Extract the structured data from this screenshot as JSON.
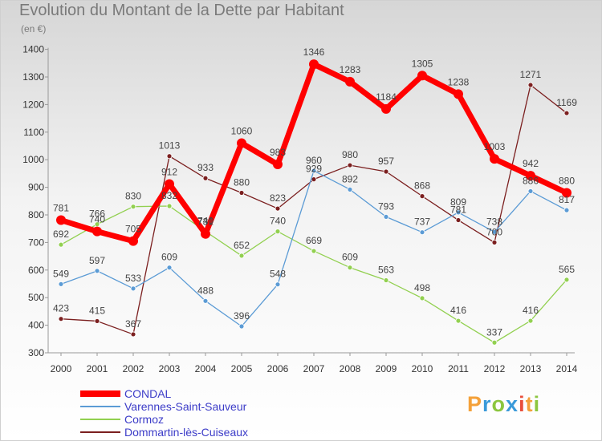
{
  "header": {
    "title": "Evolution du Montant de la Dette par Habitant",
    "unit": "(en €)"
  },
  "logo": {
    "text": "Proxiti",
    "colors": [
      "#f4a13a",
      "#3a9ad9",
      "#8cc63f",
      "#3a9ad9",
      "#e94e3b",
      "#f4a13a",
      "#8cc63f"
    ]
  },
  "chart_data": {
    "type": "line",
    "title": "Evolution du Montant de la Dette par Habitant",
    "subtitle": "(en €)",
    "x": [
      "2000",
      "2001",
      "2002",
      "2003",
      "2004",
      "2005",
      "2006",
      "2007",
      "2008",
      "2009",
      "2010",
      "2011",
      "2012",
      "2013",
      "2014"
    ],
    "y_ticks": [
      300,
      400,
      500,
      600,
      700,
      800,
      900,
      1000,
      1100,
      1200,
      1300,
      1400
    ],
    "ylim": [
      300,
      1400
    ],
    "grid": false,
    "legend_position": "bottom-left",
    "series": [
      {
        "name": "CONDAL",
        "color": "#ff0000",
        "values": [
          781,
          740,
          705,
          912,
          731,
          1060,
          983,
          1346,
          1283,
          1184,
          1305,
          1238,
          1003,
          942,
          880
        ],
        "labels": [
          "781",
          "740",
          "705",
          "912",
          "731",
          "1060",
          "983",
          "1346",
          "1283",
          "1184",
          "1305",
          "1238",
          "1003",
          "942",
          "880"
        ]
      },
      {
        "name": "Varennes-Saint-Sauveur",
        "color": "#5b9bd5",
        "values": [
          549,
          597,
          533,
          609,
          488,
          396,
          548,
          960,
          892,
          793,
          737,
          809,
          738,
          886,
          817
        ],
        "labels": [
          "549",
          "597",
          "533",
          "609",
          "488",
          "396",
          "548",
          "960",
          "892",
          "793",
          "737",
          "809",
          "738",
          "886",
          "817"
        ]
      },
      {
        "name": "Cormoz",
        "color": "#92d050",
        "values": [
          692,
          766,
          830,
          832,
          740,
          652,
          740,
          669,
          609,
          563,
          498,
          416,
          337,
          416,
          565
        ],
        "labels": [
          "692",
          "766",
          "830",
          "832",
          "740",
          "652",
          "740",
          "669",
          "609",
          "563",
          "498",
          "416",
          "337",
          "416",
          "565"
        ]
      },
      {
        "name": "Dommartin-lès-Cuiseaux",
        "color": "#7b1f1f",
        "values": [
          423,
          415,
          367,
          1013,
          933,
          880,
          823,
          929,
          980,
          957,
          868,
          781,
          700,
          1271,
          1169
        ],
        "labels": [
          "423",
          "415",
          "367",
          "1013",
          "933",
          "880",
          "823",
          "929",
          "980",
          "957",
          "868",
          "781",
          "700",
          "1271",
          "1169"
        ]
      }
    ]
  }
}
